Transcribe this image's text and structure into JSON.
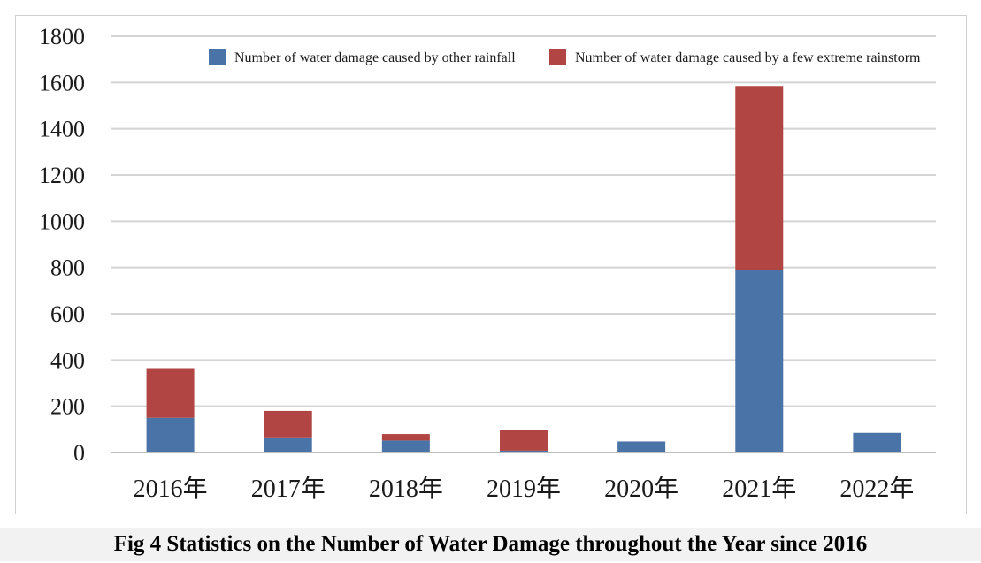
{
  "caption": "Fig 4 Statistics on the Number of Water Damage throughout the Year since 2016",
  "chart_data": {
    "type": "bar",
    "stacked": true,
    "categories": [
      "2016年",
      "2017年",
      "2018年",
      "2019年",
      "2020年",
      "2021年",
      "2022年"
    ],
    "series": [
      {
        "name": "Number of water damage caused by other rainfall",
        "color": "#4a73a8",
        "values": [
          150,
          62,
          52,
          8,
          48,
          790,
          85
        ]
      },
      {
        "name": "Number of water damage caused by a few extreme rainstorm",
        "color": "#b04543",
        "values": [
          215,
          118,
          28,
          90,
          0,
          795,
          0
        ]
      }
    ],
    "ylim": [
      0,
      1800
    ],
    "yticks": [
      "0",
      "200",
      "400",
      "600",
      "800",
      "1000",
      "1200",
      "1400",
      "1600",
      "1800"
    ],
    "ytick_values": [
      0,
      200,
      400,
      600,
      800,
      1000,
      1200,
      1400,
      1600,
      1800
    ],
    "grid": true,
    "legend_position": "top-right",
    "title": "",
    "xlabel": "",
    "ylabel": ""
  }
}
